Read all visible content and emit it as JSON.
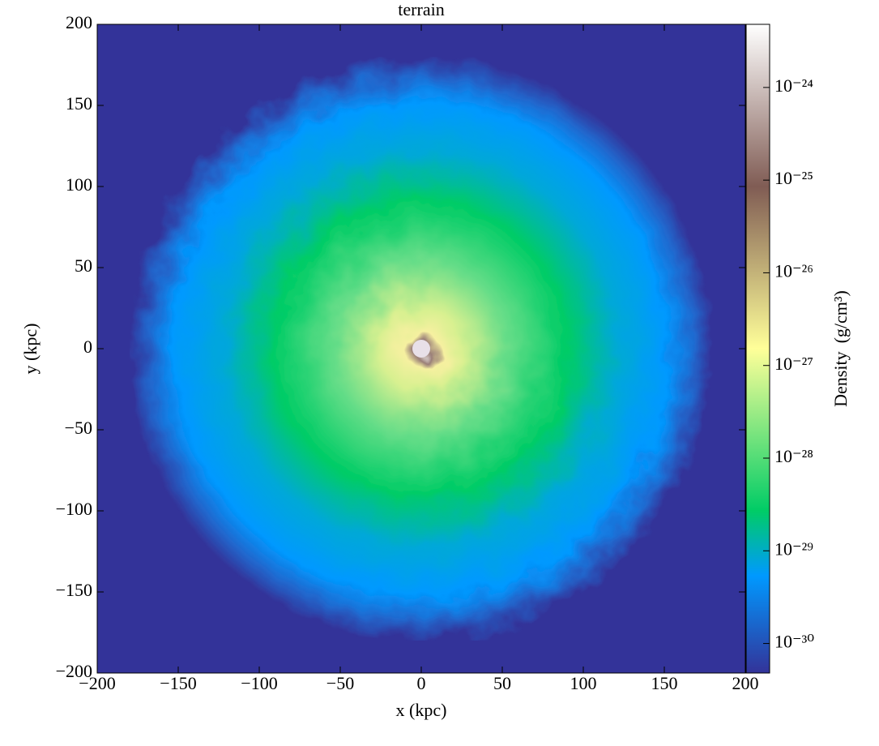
{
  "chart_data": {
    "type": "heatmap",
    "title": "terrain",
    "x_label": "x  (kpc)",
    "y_label": "y  (kpc)",
    "xlim": [
      -200,
      200
    ],
    "ylim": [
      -200,
      200
    ],
    "xticks": [
      {
        "value": -200,
        "label": "−200"
      },
      {
        "value": -150,
        "label": "−150"
      },
      {
        "value": -100,
        "label": "−100"
      },
      {
        "value": -50,
        "label": "−50"
      },
      0,
      50,
      100,
      150,
      200
    ],
    "yticks": [
      {
        "value": -200,
        "label": "−200"
      },
      {
        "value": -150,
        "label": "−150"
      },
      {
        "value": -100,
        "label": "−100"
      },
      {
        "value": -50,
        "label": "−50"
      },
      0,
      50,
      100,
      150,
      200
    ],
    "colorbar": {
      "label": "Density",
      "unit": "(g/cm³)",
      "log_scale": true,
      "lim": [
        4.8e-31,
        4.8e-24
      ],
      "ticks": [
        {
          "value": 1e-30,
          "label": "10⁻³⁰"
        },
        {
          "value": 1e-29,
          "label": "10⁻²⁹"
        },
        {
          "value": 1e-28,
          "label": "10⁻²⁸"
        },
        {
          "value": 1e-27,
          "label": "10⁻²⁷"
        },
        {
          "value": 1e-26,
          "label": "10⁻²⁶"
        },
        {
          "value": 1e-25,
          "label": "10⁻²⁵"
        },
        {
          "value": 1e-24,
          "label": "10⁻²⁴"
        }
      ]
    }
  }
}
